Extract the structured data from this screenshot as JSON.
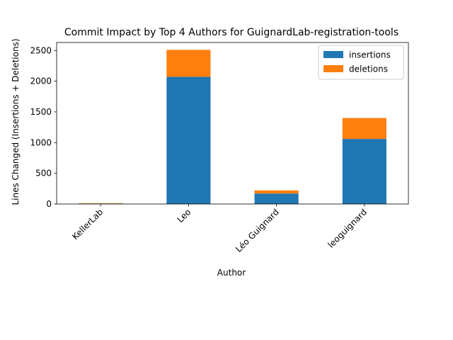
{
  "chart_data": {
    "type": "bar",
    "stacked": true,
    "title": "Commit Impact by Top 4 Authors for GuignardLab-registration-tools",
    "xlabel": "Author",
    "ylabel": "Lines Changed (Insertions + Deletions)",
    "categories": [
      "KellerLab",
      "Leo",
      "Léo Guignard",
      "leoguignard"
    ],
    "series": [
      {
        "name": "insertions",
        "values": [
          8,
          2070,
          170,
          1060
        ],
        "color": "#1f77b4"
      },
      {
        "name": "deletions",
        "values": [
          6,
          440,
          52,
          340
        ],
        "color": "#ff7f0e"
      }
    ],
    "ylim": [
      0,
      2630
    ],
    "yticks": [
      0,
      500,
      1000,
      1500,
      2000,
      2500
    ],
    "grid": false,
    "legend_position": "top-right"
  }
}
